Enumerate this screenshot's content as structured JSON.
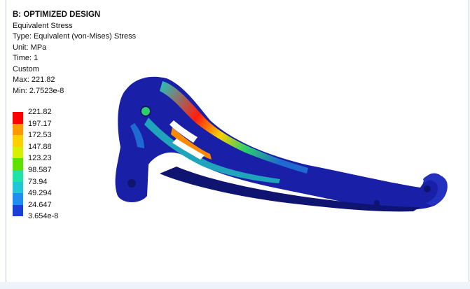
{
  "result": {
    "title": "B: OPTIMIZED DESIGN",
    "lines": [
      "Equivalent Stress",
      "Type: Equivalent (von-Mises) Stress",
      "Unit: MPa",
      "Time: 1",
      "Custom",
      "Max: 221.82",
      "Min: 2.7523e-8"
    ]
  },
  "legend": {
    "labels": [
      "221.82",
      "197.17",
      "172.53",
      "147.88",
      "123.23",
      "98.587",
      "73.94",
      "49.294",
      "24.647",
      "3.654e-8"
    ],
    "colors": [
      "#ff0000",
      "#ff9900",
      "#ffd000",
      "#d7f000",
      "#5fe000",
      "#20e3a8",
      "#21c6d8",
      "#1f8ef0",
      "#1a3fd6"
    ]
  },
  "model": {
    "colors": {
      "low": "#1a1fa8",
      "low_dark": "#0f1470",
      "mid_low": "#1f6ad0",
      "mid": "#20c6c0",
      "green": "#2ecf6b",
      "yellow": "#e8e000",
      "orange": "#ff8a00",
      "red": "#ff1e10"
    }
  }
}
